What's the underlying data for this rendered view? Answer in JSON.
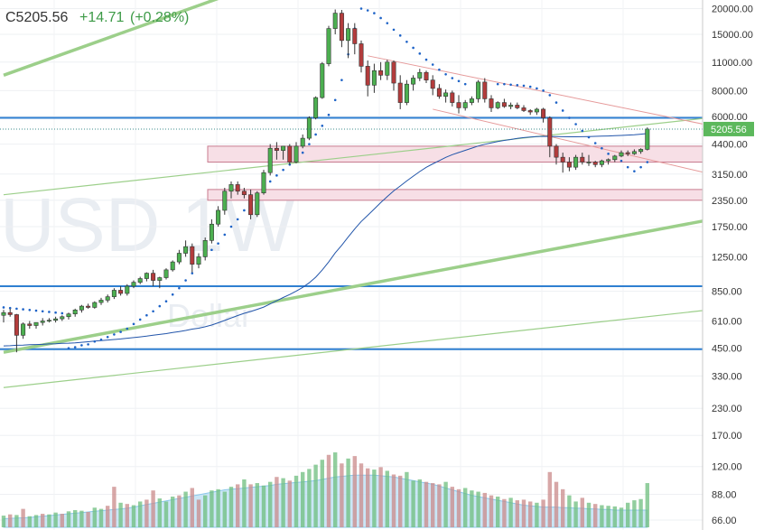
{
  "header": {
    "close_label": "C5205.56",
    "change": "+14.71",
    "change_pct": "(+0.28%)"
  },
  "watermark": {
    "symbol": "USD 1W",
    "description": "Dollar"
  },
  "colors": {
    "up": "#4caf50",
    "down": "#b33c3c",
    "header_up": "#3d9a47",
    "price_badge": "#5cb85c",
    "level_line": "#2f7fd1",
    "trend_green": "#9ccf8a",
    "trend_red": "#e69a9a",
    "zone_fill": "#f7dfe6",
    "zone_border": "#c87b8f",
    "ma_line": "#2255aa",
    "sar_dot": "#1e63c7",
    "vol_up": "#6dbd7d",
    "vol_down": "#c98a8a",
    "vol_ma_fill": "#bde0f4"
  },
  "chart_data": {
    "type": "candlestick",
    "scale": "log",
    "last_price": 5205.56,
    "price_badge": "5205.56",
    "y_axis_ticks": [
      "20000.00",
      "15000.00",
      "11000.00",
      "8000.00",
      "6000.00",
      "4400.00",
      "3150.00",
      "2350.00",
      "1750.00",
      "1250.00",
      "850.00",
      "610.00",
      "450.00",
      "330.00",
      "230.00",
      "170.00",
      "120.00",
      "88.00",
      "66.00"
    ],
    "horizontal_levels": [
      5900,
      900,
      445
    ],
    "zones": [
      [
        3600,
        4300
      ],
      [
        2350,
        2650
      ]
    ],
    "ohlc": [
      [
        650,
        690,
        600,
        670
      ],
      [
        670,
        700,
        640,
        655
      ],
      [
        655,
        660,
        430,
        520
      ],
      [
        520,
        600,
        500,
        590
      ],
      [
        590,
        610,
        560,
        580
      ],
      [
        580,
        600,
        560,
        600
      ],
      [
        600,
        630,
        580,
        610
      ],
      [
        610,
        630,
        600,
        615
      ],
      [
        615,
        640,
        600,
        625
      ],
      [
        625,
        650,
        610,
        640
      ],
      [
        640,
        670,
        620,
        660
      ],
      [
        660,
        700,
        640,
        690
      ],
      [
        690,
        730,
        670,
        720
      ],
      [
        720,
        740,
        700,
        710
      ],
      [
        710,
        760,
        700,
        750
      ],
      [
        750,
        790,
        730,
        770
      ],
      [
        770,
        820,
        750,
        800
      ],
      [
        800,
        880,
        780,
        860
      ],
      [
        860,
        900,
        810,
        830
      ],
      [
        830,
        920,
        810,
        900
      ],
      [
        900,
        960,
        880,
        940
      ],
      [
        940,
        1000,
        920,
        980
      ],
      [
        980,
        1050,
        950,
        1040
      ],
      [
        1040,
        1080,
        900,
        960
      ],
      [
        960,
        1000,
        880,
        990
      ],
      [
        990,
        1100,
        970,
        1080
      ],
      [
        1080,
        1200,
        1060,
        1180
      ],
      [
        1180,
        1350,
        1150,
        1300
      ],
      [
        1300,
        1500,
        1250,
        1400
      ],
      [
        1400,
        1450,
        1050,
        1150
      ],
      [
        1150,
        1300,
        1100,
        1250
      ],
      [
        1250,
        1550,
        1200,
        1500
      ],
      [
        1500,
        1900,
        1450,
        1800
      ],
      [
        1800,
        2200,
        1750,
        2100
      ],
      [
        2100,
        2700,
        2000,
        2600
      ],
      [
        2600,
        2900,
        2400,
        2800
      ],
      [
        2800,
        2900,
        2500,
        2600
      ],
      [
        2600,
        2700,
        2400,
        2500
      ],
      [
        2500,
        2650,
        1900,
        2000
      ],
      [
        2000,
        2600,
        1950,
        2550
      ],
      [
        2550,
        3300,
        2500,
        3200
      ],
      [
        3200,
        4400,
        3100,
        4200
      ],
      [
        4200,
        4500,
        3700,
        4100
      ],
      [
        4100,
        4300,
        3700,
        4300
      ],
      [
        4300,
        4400,
        3500,
        3600
      ],
      [
        3600,
        4500,
        3550,
        4300
      ],
      [
        4300,
        4900,
        4200,
        4700
      ],
      [
        4700,
        6000,
        4600,
        5900
      ],
      [
        5900,
        7500,
        5800,
        7400
      ],
      [
        7400,
        11000,
        7300,
        10800
      ],
      [
        10800,
        16500,
        10500,
        16000
      ],
      [
        16000,
        19800,
        15000,
        19000
      ],
      [
        19000,
        19700,
        13000,
        14000
      ],
      [
        14000,
        17000,
        11500,
        16000
      ],
      [
        16000,
        17000,
        12000,
        13500
      ],
      [
        13500,
        14000,
        9800,
        10500
      ],
      [
        10500,
        11200,
        7500,
        8500
      ],
      [
        8500,
        10800,
        7800,
        10000
      ],
      [
        10000,
        11000,
        9000,
        9500
      ],
      [
        9500,
        11300,
        9000,
        11000
      ],
      [
        11000,
        11200,
        8000,
        8700
      ],
      [
        8700,
        9500,
        6500,
        7000
      ],
      [
        7000,
        9000,
        6800,
        8600
      ],
      [
        8600,
        9500,
        8000,
        9200
      ],
      [
        9200,
        10200,
        8900,
        9800
      ],
      [
        9800,
        10000,
        8700,
        9000
      ],
      [
        9000,
        9500,
        7600,
        8200
      ],
      [
        8200,
        8600,
        7300,
        7500
      ],
      [
        7500,
        8100,
        7000,
        7800
      ],
      [
        7800,
        8000,
        6700,
        7000
      ],
      [
        7000,
        7600,
        6200,
        6600
      ],
      [
        6600,
        7200,
        6400,
        7000
      ],
      [
        7000,
        7500,
        6800,
        7300
      ],
      [
        7300,
        9000,
        7000,
        8800
      ],
      [
        8800,
        9200,
        7000,
        7300
      ],
      [
        7300,
        7600,
        6300,
        6600
      ],
      [
        6600,
        7100,
        6500,
        7000
      ],
      [
        7000,
        7300,
        6600,
        6700
      ],
      [
        6700,
        7000,
        6500,
        6800
      ],
      [
        6800,
        7000,
        6500,
        6600
      ],
      [
        6600,
        6800,
        6300,
        6400
      ],
      [
        6400,
        6500,
        6100,
        6300
      ],
      [
        6300,
        6600,
        6100,
        6500
      ],
      [
        6500,
        6600,
        5600,
        5900
      ],
      [
        5900,
        6000,
        3800,
        4300
      ],
      [
        4300,
        4400,
        3500,
        3800
      ],
      [
        3800,
        4000,
        3200,
        3600
      ],
      [
        3600,
        3800,
        3250,
        3400
      ],
      [
        3400,
        3900,
        3300,
        3800
      ],
      [
        3800,
        4000,
        3500,
        3600
      ],
      [
        3600,
        3900,
        3450,
        3600
      ],
      [
        3600,
        3650,
        3400,
        3500
      ],
      [
        3500,
        3700,
        3400,
        3650
      ],
      [
        3650,
        3750,
        3500,
        3700
      ],
      [
        3700,
        3900,
        3600,
        3850
      ],
      [
        3850,
        4100,
        3800,
        4000
      ],
      [
        4000,
        4100,
        3850,
        3950
      ],
      [
        3950,
        4150,
        3900,
        4050
      ],
      [
        4050,
        4200,
        3950,
        4150
      ],
      [
        4150,
        5300,
        4100,
        5205.56
      ]
    ],
    "moving_average": [
      462,
      463,
      465,
      466,
      468,
      469,
      470,
      472,
      473,
      475,
      476,
      478,
      481,
      484,
      487,
      490,
      493,
      496,
      499,
      503,
      507,
      511,
      515,
      520,
      525,
      530,
      536,
      542,
      549,
      557,
      563,
      572,
      583,
      598,
      614,
      631,
      648,
      665,
      678,
      695,
      713,
      738,
      765,
      793,
      820,
      852,
      888,
      935,
      995,
      1078,
      1180,
      1305,
      1420,
      1560,
      1705,
      1855,
      1985,
      2130,
      2290,
      2450,
      2610,
      2755,
      2915,
      3075,
      3240,
      3395,
      3530,
      3660,
      3795,
      3910,
      4005,
      4105,
      4205,
      4310,
      4390,
      4460,
      4525,
      4585,
      4635,
      4690,
      4730,
      4760,
      4790,
      4800,
      4795,
      4785,
      4780,
      4775,
      4775,
      4780,
      4790,
      4800,
      4810,
      4820,
      4835,
      4850,
      4870,
      4890,
      4915,
      4950
    ],
    "parabolic_sar": [
      710,
      705,
      700,
      695,
      690,
      685,
      680,
      675,
      670,
      665,
      450,
      455,
      465,
      470,
      485,
      495,
      510,
      525,
      540,
      560,
      590,
      620,
      650,
      680,
      720,
      760,
      820,
      880,
      960,
      1040,
      1200,
      1260,
      1350,
      1450,
      1600,
      1750,
      1900,
      2100,
      2300,
      2500,
      2700,
      2900,
      3100,
      3300,
      3500,
      3700,
      4000,
      4400,
      4900,
      5400,
      6100,
      7200,
      9000,
      12000,
      16000,
      20000,
      19600,
      19000,
      18000,
      17000,
      15800,
      14800,
      13800,
      12900,
      12100,
      11300,
      10700,
      10100,
      9600,
      9200,
      8900,
      8600,
      null,
      null,
      null,
      null,
      8600,
      8600,
      8550,
      8500,
      8450,
      8350,
      8200,
      8000,
      7600,
      7000,
      6400,
      5900,
      5500,
      5100,
      4750,
      4450,
      4200,
      3950,
      3800,
      3650,
      3400,
      3250,
      3400,
      3600
    ],
    "trendlines": [
      {
        "style": "green_thick",
        "points": [
          [
            0,
            9500
          ],
          [
            78,
            72000
          ]
        ]
      },
      {
        "style": "green_thick",
        "points": [
          [
            0,
            430
          ],
          [
            140,
            2900
          ]
        ]
      },
      {
        "style": "green_thin",
        "points": [
          [
            0,
            2500
          ],
          [
            130,
            7000
          ]
        ]
      },
      {
        "style": "green_thin",
        "points": [
          [
            0,
            290
          ],
          [
            130,
            820
          ]
        ]
      },
      {
        "style": "red_thin",
        "points": [
          [
            66,
            6500
          ],
          [
            130,
            2200
          ]
        ]
      },
      {
        "style": "red_thin",
        "points": [
          [
            56,
            11800
          ],
          [
            130,
            3950
          ]
        ]
      }
    ],
    "volume": [
      19,
      21,
      20,
      30,
      18,
      20,
      22,
      21,
      24,
      22,
      26,
      28,
      27,
      25,
      32,
      30,
      35,
      66,
      40,
      38,
      36,
      42,
      45,
      60,
      47,
      42,
      50,
      52,
      58,
      64,
      45,
      52,
      60,
      62,
      58,
      66,
      70,
      78,
      70,
      72,
      68,
      74,
      82,
      80,
      76,
      84,
      90,
      95,
      102,
      110,
      118,
      122,
      104,
      112,
      116,
      104,
      96,
      94,
      98,
      92,
      86,
      84,
      90,
      76,
      78,
      74,
      72,
      70,
      74,
      66,
      62,
      64,
      60,
      58,
      56,
      52,
      50,
      46,
      48,
      44,
      45,
      42,
      40,
      45,
      90,
      74,
      62,
      52,
      42,
      48,
      40,
      38,
      36,
      35,
      34,
      32,
      40,
      44,
      46,
      72
    ],
    "volume_down": [
      false,
      true,
      false,
      true,
      false,
      false,
      true,
      false,
      false,
      true,
      false,
      false,
      false,
      true,
      false,
      false,
      true,
      true,
      false,
      true,
      false,
      false,
      true,
      true,
      false,
      false,
      false,
      true,
      false,
      true,
      true,
      false,
      false,
      false,
      false,
      false,
      true,
      false,
      true,
      false,
      false,
      false,
      true,
      false,
      true,
      false,
      false,
      false,
      false,
      false,
      true,
      false,
      true,
      false,
      true,
      true,
      true,
      false,
      true,
      false,
      true,
      true,
      false,
      false,
      false,
      true,
      true,
      true,
      false,
      true,
      true,
      false,
      false,
      false,
      true,
      true,
      false,
      true,
      false,
      true,
      true,
      true,
      false,
      true,
      true,
      true,
      true,
      false,
      false,
      true,
      false,
      true,
      false,
      false,
      false,
      false,
      false,
      false,
      false,
      false
    ],
    "volume_ma": [
      14,
      14.5,
      15,
      15.5,
      16,
      17,
      18,
      19,
      20,
      21,
      22,
      23,
      24,
      25,
      26,
      27,
      28,
      29,
      30,
      31,
      33,
      35,
      37,
      39,
      41,
      43,
      45,
      47,
      49,
      51,
      53,
      55,
      57,
      59,
      61,
      62,
      63,
      64,
      65,
      66,
      67,
      68,
      70,
      71,
      72,
      73,
      74,
      75,
      76,
      78,
      80,
      82,
      83,
      84,
      85,
      85,
      85,
      85,
      84,
      83,
      82,
      80,
      78,
      76,
      74,
      72,
      70,
      67,
      64,
      61,
      58,
      55,
      52,
      50,
      48,
      46,
      44,
      42,
      40,
      38,
      36,
      35,
      34,
      33,
      33,
      33,
      32,
      32,
      31,
      31,
      30,
      30,
      29,
      29,
      28,
      28,
      28,
      28,
      28,
      28
    ]
  }
}
